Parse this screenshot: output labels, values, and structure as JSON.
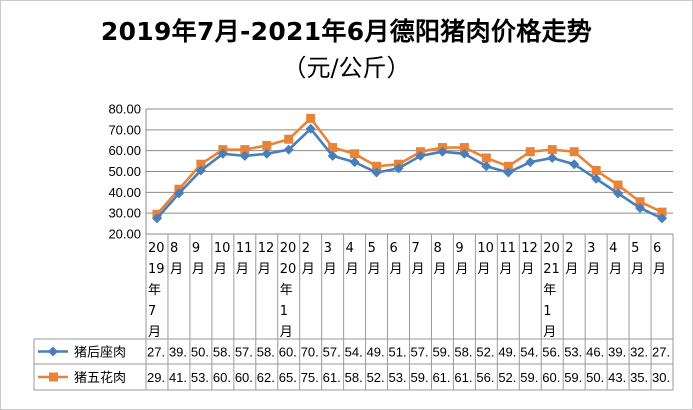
{
  "chart_data": {
    "type": "line",
    "title": "2019年7月-2021年6月德阳猪肉价格走势",
    "subtitle": "（元/公斤）",
    "ylim": [
      20,
      80
    ],
    "y_ticks": [
      "20.00",
      "30.00",
      "40.00",
      "50.00",
      "60.00",
      "70.00",
      "80.00"
    ],
    "grid": true,
    "legend_placement": "data-table-left",
    "categories": [
      "2019年7月",
      "8月",
      "9月",
      "10月",
      "11月",
      "12月",
      "2020年1月",
      "2月",
      "3月",
      "4月",
      "5月",
      "6月",
      "7月",
      "8月",
      "9月",
      "10月",
      "11月",
      "12月",
      "2021年1月",
      "2月",
      "3月",
      "4月",
      "5月",
      "6月"
    ],
    "category_lines": [
      [
        "20",
        "19",
        "年",
        "7",
        "月"
      ],
      [
        "8",
        "月"
      ],
      [
        "9",
        "月"
      ],
      [
        "10",
        "月"
      ],
      [
        "11",
        "月"
      ],
      [
        "12",
        "月"
      ],
      [
        "20",
        "20",
        "年",
        "1",
        "月"
      ],
      [
        "2",
        "月"
      ],
      [
        "3",
        "月"
      ],
      [
        "4",
        "月"
      ],
      [
        "5",
        "月"
      ],
      [
        "6",
        "月"
      ],
      [
        "7",
        "月"
      ],
      [
        "8",
        "月"
      ],
      [
        "9",
        "月"
      ],
      [
        "10",
        "月"
      ],
      [
        "11",
        "月"
      ],
      [
        "12",
        "月"
      ],
      [
        "20",
        "21",
        "年",
        "1",
        "月"
      ],
      [
        "2",
        "月"
      ],
      [
        "3",
        "月"
      ],
      [
        "4",
        "月"
      ],
      [
        "5",
        "月"
      ],
      [
        "6",
        "月"
      ]
    ],
    "series": [
      {
        "name": "猪后座肉",
        "color": "#4a7ebb",
        "marker": "diamond",
        "values": [
          27.5,
          39.5,
          50.5,
          58.5,
          57.5,
          58.5,
          60.5,
          70.5,
          57.5,
          54.5,
          49.5,
          51.5,
          57.5,
          59.5,
          58.5,
          52.5,
          49.5,
          54.5,
          56.5,
          53.5,
          46.5,
          39.5,
          32.5,
          27.5
        ],
        "table_labels": [
          "27.",
          "39.",
          "50.",
          "58.",
          "57.",
          "58.",
          "60.",
          "70.",
          "57.",
          "54.",
          "49.",
          "51.",
          "57.",
          "59.",
          "58.",
          "52.",
          "49.",
          "54.",
          "56.",
          "53.",
          "46.",
          "39.",
          "32.",
          "27."
        ]
      },
      {
        "name": "猪五花肉",
        "color": "#e8833a",
        "marker": "square",
        "values": [
          29.5,
          41.5,
          53.5,
          60.5,
          60.5,
          62.5,
          65.5,
          75.5,
          61.5,
          58.5,
          52.5,
          53.5,
          59.5,
          61.5,
          61.5,
          56.5,
          52.5,
          59.5,
          60.5,
          59.5,
          50.5,
          43.5,
          35.5,
          30.5
        ],
        "table_labels": [
          "29.",
          "41.",
          "53.",
          "60.",
          "60.",
          "62.",
          "65.",
          "75.",
          "61.",
          "58.",
          "52.",
          "53.",
          "59.",
          "61.",
          "61.",
          "56.",
          "52.",
          "59.",
          "60.",
          "59.",
          "50.",
          "43.",
          "35.",
          "30."
        ]
      }
    ]
  }
}
